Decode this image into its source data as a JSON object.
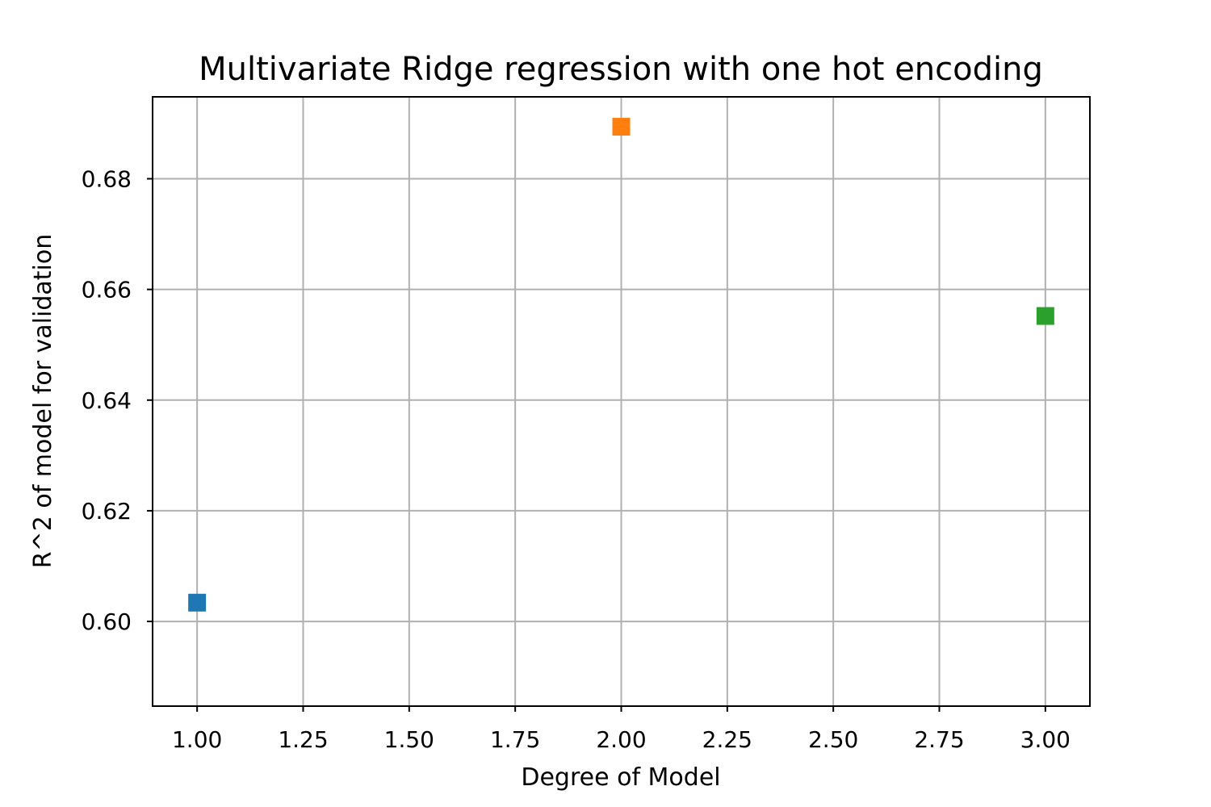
{
  "chart_data": {
    "type": "scatter",
    "title": "Multivariate Ridge regression with one hot encoding",
    "xlabel": "Degree of Model",
    "ylabel": "R^2 of model for validation",
    "xlim": [
      0.895,
      3.105
    ],
    "ylim": [
      0.5847,
      0.6948
    ],
    "xticks": [
      1.0,
      1.25,
      1.5,
      1.75,
      2.0,
      2.25,
      2.5,
      2.75,
      3.0
    ],
    "xtick_labels": [
      "1.00",
      "1.25",
      "1.50",
      "1.75",
      "2.00",
      "2.25",
      "2.50",
      "2.75",
      "3.00"
    ],
    "yticks": [
      0.6,
      0.62,
      0.64,
      0.66,
      0.68
    ],
    "ytick_labels": [
      "0.60",
      "0.62",
      "0.64",
      "0.66",
      "0.68"
    ],
    "grid": true,
    "marker": "square",
    "points": [
      {
        "x": 1,
        "y": 0.6034,
        "color": "#1f77b4"
      },
      {
        "x": 2,
        "y": 0.6894,
        "color": "#ff7f0e"
      },
      {
        "x": 3,
        "y": 0.6552,
        "color": "#2ca02c"
      }
    ]
  }
}
